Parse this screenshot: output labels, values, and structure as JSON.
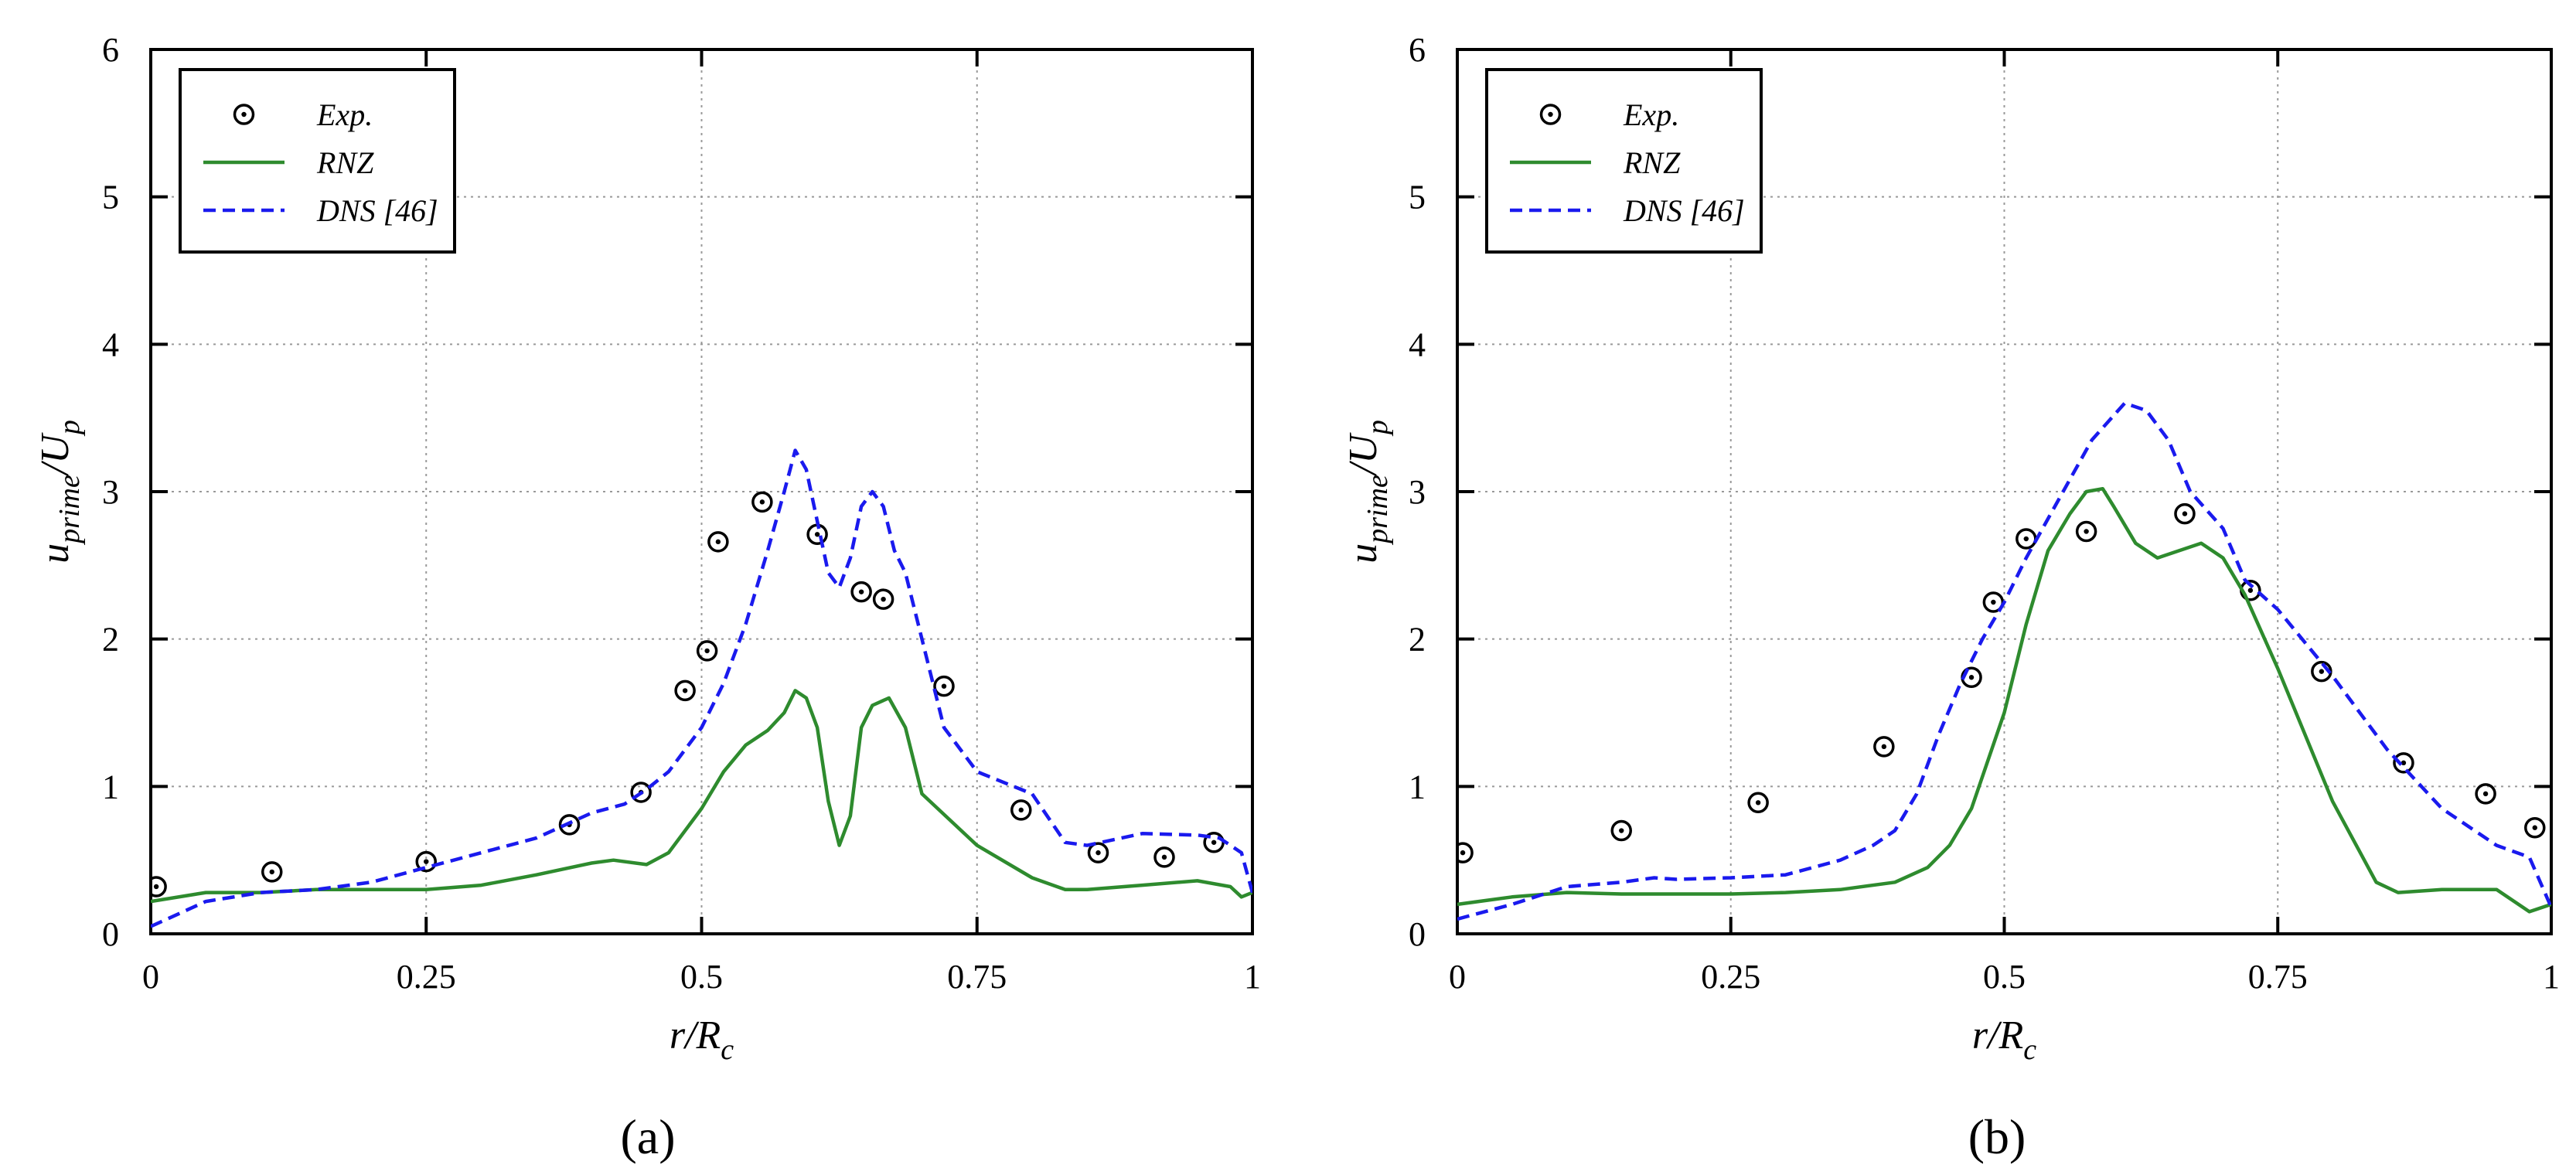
{
  "chart_data": [
    {
      "type": "line",
      "panel_label": "(a)",
      "xlabel": "r/R",
      "xlabel_sub": "c",
      "ylabel": "u",
      "ylabel_sub": "prime",
      "ylabel_tail": "/U",
      "ylabel_tail_sub": "p",
      "xlim": [
        0,
        1
      ],
      "ylim": [
        0,
        6
      ],
      "xticks": [
        0,
        0.25,
        0.5,
        0.75,
        1
      ],
      "xtick_labels": [
        "0",
        "0.25",
        "0.5",
        "0.75",
        "1"
      ],
      "yticks": [
        0,
        1,
        2,
        3,
        4,
        5,
        6
      ],
      "ytick_labels": [
        "0",
        "1",
        "2",
        "3",
        "4",
        "5",
        "6"
      ],
      "grid": true,
      "legend": {
        "position": "top-left",
        "entries": [
          "Exp.",
          "RNZ",
          "DNS [46]"
        ]
      },
      "series": [
        {
          "name": "Exp.",
          "style": "markers",
          "color": "#000000",
          "x": [
            0.005,
            0.11,
            0.25,
            0.38,
            0.445,
            0.485,
            0.505,
            0.515,
            0.555,
            0.605,
            0.645,
            0.665,
            0.72,
            0.79,
            0.86,
            0.92,
            0.965
          ],
          "y": [
            0.32,
            0.42,
            0.49,
            0.74,
            0.96,
            1.65,
            1.92,
            2.66,
            2.93,
            2.71,
            2.32,
            2.27,
            1.68,
            0.84,
            0.55,
            0.52,
            0.62
          ]
        },
        {
          "name": "RNZ",
          "style": "solid",
          "color": "#2e8b2e",
          "x": [
            0,
            0.05,
            0.1,
            0.15,
            0.2,
            0.25,
            0.3,
            0.35,
            0.4,
            0.42,
            0.45,
            0.47,
            0.5,
            0.52,
            0.54,
            0.56,
            0.575,
            0.585,
            0.595,
            0.605,
            0.615,
            0.625,
            0.635,
            0.645,
            0.655,
            0.67,
            0.685,
            0.7,
            0.75,
            0.8,
            0.83,
            0.85,
            0.9,
            0.95,
            0.98,
            0.99,
            1
          ],
          "y": [
            0.22,
            0.28,
            0.28,
            0.3,
            0.3,
            0.3,
            0.33,
            0.4,
            0.48,
            0.5,
            0.47,
            0.55,
            0.85,
            1.1,
            1.28,
            1.38,
            1.5,
            1.65,
            1.6,
            1.4,
            0.9,
            0.6,
            0.8,
            1.4,
            1.55,
            1.6,
            1.4,
            0.95,
            0.6,
            0.38,
            0.3,
            0.3,
            0.33,
            0.36,
            0.32,
            0.25,
            0.28
          ]
        },
        {
          "name": "DNS [46]",
          "style": "dashed",
          "color": "#1a1aee",
          "x": [
            0,
            0.05,
            0.1,
            0.15,
            0.2,
            0.25,
            0.3,
            0.35,
            0.4,
            0.43,
            0.45,
            0.47,
            0.5,
            0.52,
            0.54,
            0.56,
            0.575,
            0.585,
            0.595,
            0.605,
            0.615,
            0.625,
            0.635,
            0.645,
            0.655,
            0.665,
            0.675,
            0.685,
            0.7,
            0.72,
            0.75,
            0.8,
            0.83,
            0.85,
            0.9,
            0.95,
            0.97,
            0.99,
            1
          ],
          "y": [
            0.05,
            0.22,
            0.28,
            0.3,
            0.35,
            0.45,
            0.55,
            0.65,
            0.82,
            0.88,
            0.98,
            1.1,
            1.4,
            1.7,
            2.1,
            2.6,
            3.0,
            3.28,
            3.15,
            2.8,
            2.45,
            2.35,
            2.55,
            2.9,
            3.0,
            2.9,
            2.6,
            2.45,
            2.0,
            1.4,
            1.1,
            0.95,
            0.62,
            0.6,
            0.68,
            0.67,
            0.65,
            0.55,
            0.28
          ]
        }
      ]
    },
    {
      "type": "line",
      "panel_label": "(b)",
      "xlabel": "r/R",
      "xlabel_sub": "c",
      "ylabel": "u",
      "ylabel_sub": "prime",
      "ylabel_tail": "/U",
      "ylabel_tail_sub": "p",
      "xlim": [
        0,
        1
      ],
      "ylim": [
        0,
        6
      ],
      "xticks": [
        0,
        0.25,
        0.5,
        0.75,
        1
      ],
      "xtick_labels": [
        "0",
        "0.25",
        "0.5",
        "0.75",
        "1"
      ],
      "yticks": [
        0,
        1,
        2,
        3,
        4,
        5,
        6
      ],
      "ytick_labels": [
        "0",
        "1",
        "2",
        "3",
        "4",
        "5",
        "6"
      ],
      "grid": true,
      "legend": {
        "position": "top-left",
        "entries": [
          "Exp.",
          "RNZ",
          "DNS [46]"
        ]
      },
      "series": [
        {
          "name": "Exp.",
          "style": "markers",
          "color": "#000000",
          "x": [
            0.005,
            0.15,
            0.275,
            0.39,
            0.47,
            0.49,
            0.52,
            0.575,
            0.665,
            0.725,
            0.79,
            0.865,
            0.94,
            0.985
          ],
          "y": [
            0.55,
            0.7,
            0.89,
            1.27,
            1.74,
            2.25,
            2.68,
            2.73,
            2.85,
            2.33,
            1.78,
            1.16,
            0.95,
            0.72
          ]
        },
        {
          "name": "RNZ",
          "style": "solid",
          "color": "#2e8b2e",
          "x": [
            0,
            0.05,
            0.1,
            0.15,
            0.2,
            0.25,
            0.3,
            0.35,
            0.4,
            0.43,
            0.45,
            0.47,
            0.5,
            0.52,
            0.54,
            0.56,
            0.575,
            0.59,
            0.6,
            0.62,
            0.64,
            0.66,
            0.68,
            0.7,
            0.72,
            0.75,
            0.8,
            0.84,
            0.86,
            0.9,
            0.95,
            0.98,
            1
          ],
          "y": [
            0.2,
            0.25,
            0.28,
            0.27,
            0.27,
            0.27,
            0.28,
            0.3,
            0.35,
            0.45,
            0.6,
            0.85,
            1.5,
            2.1,
            2.6,
            2.85,
            3.0,
            3.02,
            2.9,
            2.65,
            2.55,
            2.6,
            2.65,
            2.55,
            2.3,
            1.8,
            0.9,
            0.35,
            0.28,
            0.3,
            0.3,
            0.15,
            0.2
          ]
        },
        {
          "name": "DNS [46]",
          "style": "dashed",
          "color": "#1a1aee",
          "x": [
            0,
            0.05,
            0.1,
            0.15,
            0.18,
            0.2,
            0.25,
            0.3,
            0.35,
            0.38,
            0.4,
            0.42,
            0.44,
            0.46,
            0.48,
            0.5,
            0.52,
            0.55,
            0.58,
            0.61,
            0.63,
            0.65,
            0.67,
            0.7,
            0.72,
            0.75,
            0.8,
            0.85,
            0.9,
            0.95,
            0.98,
            1
          ],
          "y": [
            0.1,
            0.2,
            0.32,
            0.35,
            0.38,
            0.37,
            0.38,
            0.4,
            0.5,
            0.6,
            0.7,
            0.95,
            1.35,
            1.7,
            2.0,
            2.25,
            2.55,
            2.95,
            3.35,
            3.6,
            3.55,
            3.35,
            3.0,
            2.75,
            2.4,
            2.2,
            1.75,
            1.25,
            0.85,
            0.6,
            0.52,
            0.18
          ]
        }
      ]
    }
  ]
}
